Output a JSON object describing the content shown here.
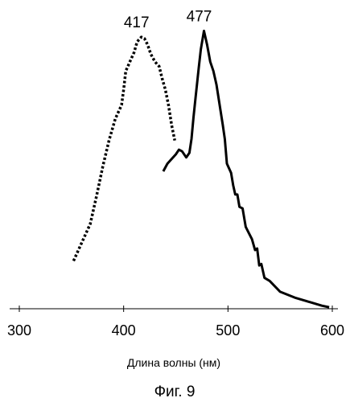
{
  "figure": {
    "caption": "Фиг. 9"
  },
  "chart_data": {
    "type": "line",
    "xlabel": "Длина волны (нм)",
    "ylabel": "",
    "xlim": [
      300,
      600
    ],
    "ylim": [
      0,
      1
    ],
    "x_ticks": [
      300,
      400,
      500,
      600
    ],
    "grid": false,
    "legend": "none",
    "series": [
      {
        "style": "dotted",
        "color": "#000000",
        "peak_label": "417",
        "x": [
          352,
          360,
          368,
          374,
          380,
          386,
          392,
          398,
          400,
          402,
          404,
          406,
          410,
          413,
          417,
          420,
          423,
          426,
          430,
          434,
          437,
          440,
          443,
          446,
          449
        ],
        "y": [
          0.155,
          0.215,
          0.275,
          0.365,
          0.46,
          0.545,
          0.615,
          0.66,
          0.71,
          0.77,
          0.785,
          0.8,
          0.83,
          0.865,
          0.88,
          0.875,
          0.855,
          0.825,
          0.8,
          0.785,
          0.745,
          0.71,
          0.66,
          0.595,
          0.545
        ]
      },
      {
        "style": "solid",
        "color": "#000000",
        "peak_label": "477",
        "x": [
          438,
          442,
          446,
          450,
          453,
          456,
          460,
          463,
          465,
          467,
          469,
          472,
          474,
          477,
          480,
          483,
          486,
          489,
          492,
          495,
          497,
          499,
          501,
          503,
          505,
          507,
          509,
          511,
          514,
          517,
          520,
          523,
          526,
          528,
          530,
          532,
          535,
          540,
          550,
          565,
          580,
          590,
          597
        ],
        "y": [
          0.445,
          0.47,
          0.485,
          0.5,
          0.515,
          0.51,
          0.49,
          0.505,
          0.55,
          0.62,
          0.685,
          0.78,
          0.84,
          0.9,
          0.855,
          0.8,
          0.77,
          0.725,
          0.66,
          0.595,
          0.55,
          0.47,
          0.455,
          0.44,
          0.4,
          0.37,
          0.37,
          0.33,
          0.325,
          0.265,
          0.245,
          0.225,
          0.19,
          0.195,
          0.14,
          0.145,
          0.1,
          0.09,
          0.055,
          0.035,
          0.02,
          0.01,
          0.005
        ]
      }
    ]
  }
}
